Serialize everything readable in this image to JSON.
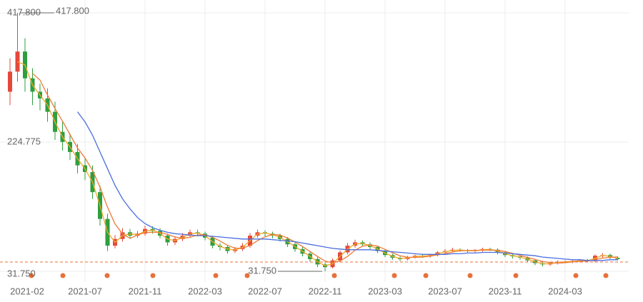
{
  "chart_data": {
    "type": "candlestick",
    "categories": [
      "2021-02",
      null,
      null,
      null,
      null,
      null,
      null,
      null,
      null,
      null,
      "2021-07",
      null,
      null,
      null,
      null,
      null,
      null,
      null,
      "2021-11",
      null,
      null,
      null,
      null,
      null,
      null,
      null,
      "2022-03",
      null,
      null,
      null,
      null,
      null,
      null,
      null,
      "2022-07",
      null,
      null,
      null,
      null,
      null,
      null,
      null,
      "2022-11",
      null,
      null,
      null,
      null,
      null,
      null,
      null,
      "2023-03",
      null,
      null,
      null,
      null,
      null,
      null,
      null,
      "2023-07",
      null,
      null,
      null,
      null,
      null,
      null,
      null,
      "2023-11",
      null,
      null,
      null,
      null,
      null,
      null,
      null,
      "2024-03",
      null,
      null,
      null,
      null,
      null,
      null,
      null
    ],
    "open": [
      300,
      330,
      360,
      320,
      300,
      290,
      270,
      240,
      225,
      210,
      190,
      180,
      150,
      110,
      70,
      80,
      90,
      85,
      88,
      95,
      92,
      85,
      75,
      80,
      85,
      90,
      88,
      82,
      70,
      68,
      62,
      65,
      70,
      85,
      90,
      88,
      85,
      80,
      72,
      65,
      58,
      50,
      42,
      38,
      48,
      60,
      70,
      75,
      72,
      68,
      62,
      56,
      52,
      50,
      53,
      55,
      54,
      56,
      60,
      62,
      64,
      63,
      62,
      63,
      65,
      64,
      60,
      56,
      54,
      52,
      48,
      44,
      42,
      44,
      46,
      46,
      47,
      48,
      47,
      55,
      56,
      52
    ],
    "high": [
      350,
      417.8,
      380,
      335,
      312,
      305,
      285,
      255,
      238,
      222,
      200,
      190,
      160,
      118,
      86,
      96,
      95,
      92,
      100,
      99,
      96,
      88,
      84,
      89,
      94,
      94,
      91,
      85,
      74,
      71,
      68,
      74,
      89,
      94,
      93,
      91,
      88,
      83,
      75,
      68,
      61,
      53,
      45,
      51,
      63,
      74,
      79,
      78,
      75,
      70,
      64,
      58,
      54,
      55,
      57,
      57,
      58,
      62,
      65,
      67,
      66,
      65,
      65,
      67,
      67,
      66,
      62,
      58,
      56,
      54,
      50,
      46,
      46,
      48,
      48,
      49,
      50,
      50,
      57,
      59,
      58,
      54
    ],
    "low": [
      280,
      315,
      300,
      280,
      272,
      255,
      228,
      212,
      198,
      178,
      168,
      140,
      100,
      62,
      66,
      76,
      80,
      82,
      85,
      88,
      81,
      70,
      71,
      77,
      82,
      84,
      78,
      66,
      63,
      58,
      59,
      62,
      67,
      82,
      84,
      81,
      76,
      68,
      61,
      54,
      46,
      38,
      31.75,
      36,
      45,
      57,
      67,
      69,
      65,
      59,
      53,
      49,
      47,
      48,
      51,
      52,
      52,
      54,
      58,
      60,
      61,
      60,
      60,
      61,
      62,
      57,
      53,
      51,
      49,
      45,
      41,
      39,
      40,
      42,
      44,
      44,
      45,
      45,
      45,
      52,
      50,
      48
    ],
    "close": [
      330,
      360,
      320,
      300,
      290,
      270,
      240,
      225,
      210,
      190,
      180,
      150,
      110,
      70,
      80,
      90,
      85,
      88,
      95,
      92,
      85,
      75,
      80,
      85,
      90,
      88,
      82,
      70,
      68,
      62,
      65,
      70,
      85,
      90,
      88,
      85,
      80,
      72,
      65,
      58,
      50,
      42,
      38,
      48,
      60,
      70,
      75,
      72,
      68,
      62,
      56,
      52,
      50,
      53,
      55,
      54,
      56,
      60,
      62,
      64,
      63,
      62,
      63,
      65,
      64,
      60,
      56,
      54,
      52,
      48,
      44,
      42,
      44,
      46,
      46,
      47,
      48,
      47,
      55,
      56,
      52,
      50
    ],
    "up_color": "#e5483b",
    "down_color": "#2e9e3e",
    "series": [
      {
        "color": "#f0a92a",
        "values": [
          null,
          345,
          340,
          310,
          295,
          280,
          255,
          232.5,
          217.5,
          200,
          185,
          165,
          130,
          90,
          75,
          85,
          87.5,
          86.5,
          91.5,
          93.5,
          88.5,
          80,
          77.5,
          82.5,
          87.5,
          89,
          85,
          76,
          69,
          65,
          63.5,
          67.5,
          77.5,
          87.5,
          89,
          86.5,
          82.5,
          76,
          68.5,
          61.5,
          54,
          46,
          40,
          43,
          54,
          65,
          72.5,
          73.5,
          70,
          65,
          59,
          54,
          51,
          51.5,
          54,
          54.5,
          55,
          58,
          61,
          63,
          63.5,
          62.5,
          62.5,
          64,
          64.5,
          62,
          58,
          55,
          53,
          50,
          46,
          43,
          43,
          45,
          46,
          46.5,
          47.5,
          47.5,
          51,
          55.5,
          54,
          51
        ]
      },
      {
        "color": "#ee7a36",
        "values": [
          null,
          null,
          null,
          327.5,
          317.5,
          295,
          275,
          256,
          236,
          216,
          201,
          182.5,
          157.5,
          127.5,
          102.5,
          87.5,
          81,
          86,
          89.5,
          90,
          90,
          86.8,
          83,
          81,
          82.5,
          85.8,
          86.3,
          82.5,
          77,
          70.5,
          66.3,
          66.3,
          70.5,
          77.5,
          83.3,
          87,
          85.8,
          81.3,
          75.5,
          68.8,
          61.3,
          53.8,
          47,
          44.5,
          47,
          54,
          63.3,
          69.3,
          71.3,
          69.3,
          64.5,
          59.5,
          55,
          52.8,
          52.5,
          53,
          54.5,
          56.3,
          58,
          60.5,
          62.3,
          62.8,
          63,
          63.3,
          63.5,
          63,
          61.3,
          58.5,
          55.5,
          52.5,
          49.5,
          46.5,
          44.5,
          44,
          44.5,
          45.8,
          46.8,
          47,
          49.3,
          51.5,
          52.5,
          53.3
        ]
      },
      {
        "color": "#4a6ee0",
        "values": [
          null,
          null,
          null,
          null,
          null,
          null,
          null,
          null,
          null,
          270,
          255,
          235,
          210,
          185,
          160,
          140,
          125,
          112,
          103,
          97,
          93,
          90,
          88,
          87,
          86,
          85,
          85,
          84,
          83,
          82,
          81,
          80,
          80,
          80,
          80,
          79,
          78,
          77,
          76,
          74,
          72,
          70,
          68,
          66,
          65,
          64,
          64,
          64,
          64,
          63,
          62,
          61,
          60,
          59,
          58,
          57,
          57,
          57,
          57,
          58,
          58,
          59,
          59,
          60,
          60,
          60,
          59,
          58,
          57,
          56,
          55,
          53,
          52,
          51,
          50,
          49,
          49,
          48,
          48,
          48,
          49,
          49
        ]
      }
    ],
    "price_line": 45.6,
    "max_label": "417.800",
    "min_label": "31.750",
    "ylim": [
      31.75,
      417.8
    ],
    "yticks": [
      {
        "value": 31.75,
        "label": "31.750"
      },
      {
        "value": 224.775,
        "label": "224.775"
      },
      {
        "value": 417.8,
        "label": "417.800"
      }
    ],
    "grid": true
  }
}
